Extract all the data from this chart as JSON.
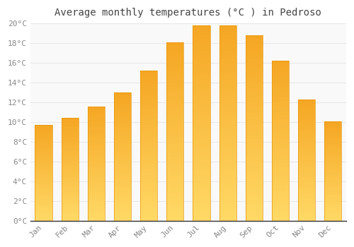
{
  "title": "Average monthly temperatures (°C ) in Pedroso",
  "months": [
    "Jan",
    "Feb",
    "Mar",
    "Apr",
    "May",
    "Jun",
    "Jul",
    "Aug",
    "Sep",
    "Oct",
    "Nov",
    "Dec"
  ],
  "values": [
    9.7,
    10.4,
    11.6,
    13.0,
    15.2,
    18.1,
    19.8,
    19.8,
    18.8,
    16.2,
    12.3,
    10.1
  ],
  "bar_color_top": "#F5A623",
  "bar_color_bottom": "#FFD966",
  "bar_edge_color": "#E8960A",
  "ylim": [
    0,
    20
  ],
  "yticks": [
    0,
    2,
    4,
    6,
    8,
    10,
    12,
    14,
    16,
    18,
    20
  ],
  "ytick_labels": [
    "0°C",
    "2°C",
    "4°C",
    "6°C",
    "8°C",
    "10°C",
    "12°C",
    "14°C",
    "16°C",
    "18°C",
    "20°C"
  ],
  "background_color": "#ffffff",
  "plot_bg_color": "#f9f9f9",
  "grid_color": "#e8e8e8",
  "title_fontsize": 10,
  "tick_fontsize": 8,
  "tick_color": "#888888",
  "bar_width": 0.65,
  "n_gradient_steps": 100
}
